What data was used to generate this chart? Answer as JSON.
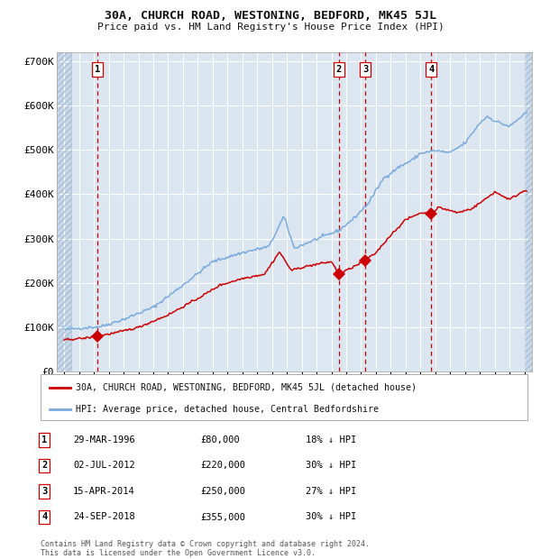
{
  "title": "30A, CHURCH ROAD, WESTONING, BEDFORD, MK45 5JL",
  "subtitle": "Price paid vs. HM Land Registry's House Price Index (HPI)",
  "legend_label_red": "30A, CHURCH ROAD, WESTONING, BEDFORD, MK45 5JL (detached house)",
  "legend_label_blue": "HPI: Average price, detached house, Central Bedfordshire",
  "footer": "Contains HM Land Registry data © Crown copyright and database right 2024.\nThis data is licensed under the Open Government Licence v3.0.",
  "purchases": [
    {
      "label": "1",
      "date_label": "29-MAR-1996",
      "price": 80000,
      "pct": "18% ↓ HPI",
      "x_year": 1996.23
    },
    {
      "label": "2",
      "date_label": "02-JUL-2012",
      "price": 220000,
      "pct": "30% ↓ HPI",
      "x_year": 2012.5
    },
    {
      "label": "3",
      "date_label": "15-APR-2014",
      "price": 250000,
      "pct": "27% ↓ HPI",
      "x_year": 2014.29
    },
    {
      "label": "4",
      "date_label": "24-SEP-2018",
      "price": 355000,
      "pct": "30% ↓ HPI",
      "x_year": 2018.73
    }
  ],
  "ylim": [
    0,
    720000
  ],
  "xlim_left": 1993.5,
  "xlim_right": 2025.5,
  "yticks": [
    0,
    100000,
    200000,
    300000,
    400000,
    500000,
    600000,
    700000
  ],
  "ytick_labels": [
    "£0",
    "£100K",
    "£200K",
    "£300K",
    "£400K",
    "£500K",
    "£600K",
    "£700K"
  ],
  "bg_color": "#dce6f1",
  "red_color": "#cc0000",
  "blue_color": "#7aaadd",
  "grid_color": "#ffffff",
  "hatch_left_end": 1994.5,
  "hatch_right_start": 2025.0,
  "table_entries": [
    {
      "num": "1",
      "date": "29-MAR-1996",
      "price": "£80,000",
      "pct": "18% ↓ HPI"
    },
    {
      "num": "2",
      "date": "02-JUL-2012",
      "price": "£220,000",
      "pct": "30% ↓ HPI"
    },
    {
      "num": "3",
      "date": "15-APR-2014",
      "price": "£250,000",
      "pct": "27% ↓ HPI"
    },
    {
      "num": "4",
      "date": "24-SEP-2018",
      "price": "£355,000",
      "pct": "30% ↓ HPI"
    }
  ]
}
